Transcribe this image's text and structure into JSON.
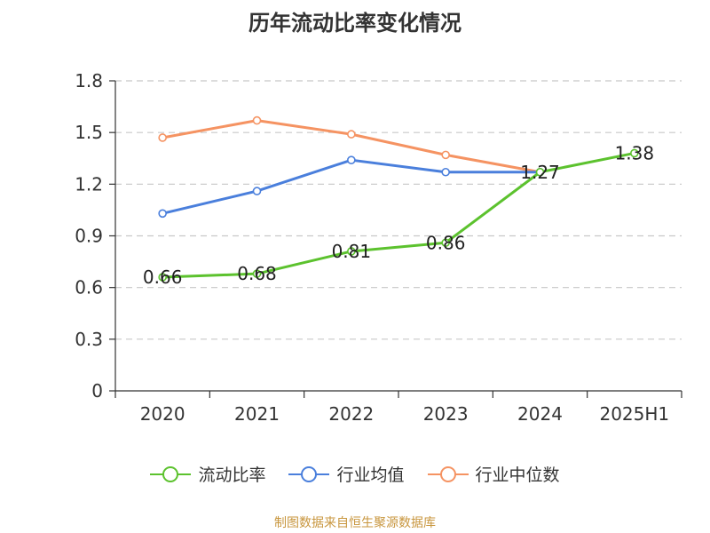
{
  "chart_data": {
    "type": "line",
    "title": "历年流动比率变化情况",
    "categories": [
      "2020",
      "2021",
      "2022",
      "2023",
      "2024",
      "2025H1"
    ],
    "ylim": [
      0,
      1.8
    ],
    "yticks": [
      0,
      0.3,
      0.6,
      0.9,
      1.2,
      1.5,
      1.8
    ],
    "ytick_labels": [
      "0",
      "0.3",
      "0.6",
      "0.9",
      "1.2",
      "1.5",
      "1.8"
    ],
    "grid": true,
    "legend_position": "bottom",
    "series": [
      {
        "name": "流动比率",
        "color": "#5cc22e",
        "values": [
          0.66,
          0.68,
          0.81,
          0.86,
          1.27,
          1.38
        ],
        "labels": [
          "0.66",
          "0.68",
          "0.81",
          "0.86",
          "1.27",
          "1.38"
        ]
      },
      {
        "name": "行业均值",
        "color": "#4a7fdc",
        "values": [
          1.03,
          1.16,
          1.34,
          1.27,
          1.27,
          null
        ]
      },
      {
        "name": "行业中位数",
        "color": "#f59362",
        "values": [
          1.47,
          1.57,
          1.49,
          1.37,
          1.27,
          null
        ]
      }
    ]
  },
  "source": "制图数据来自恒生聚源数据库"
}
